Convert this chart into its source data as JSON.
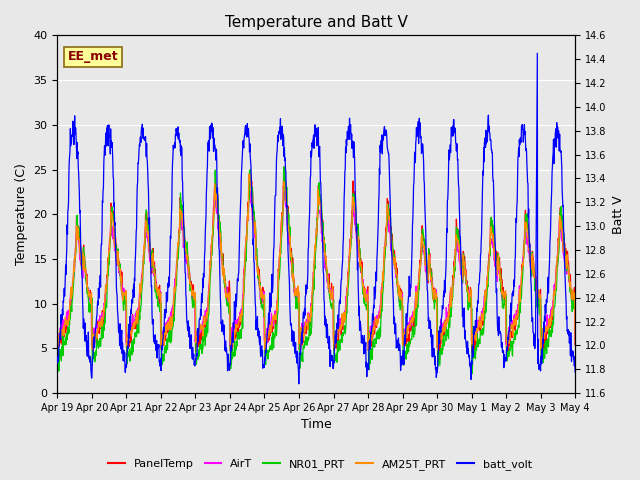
{
  "title": "Temperature and Batt V",
  "xlabel": "Time",
  "ylabel_left": "Temperature (C)",
  "ylabel_right": "Batt V",
  "annotation": "EE_met",
  "ylim_left": [
    0,
    40
  ],
  "ylim_right": [
    11.6,
    14.6
  ],
  "xlim": [
    0,
    15
  ],
  "x_tick_labels": [
    "Apr 19",
    "Apr 20",
    "Apr 21",
    "Apr 22",
    "Apr 23",
    "Apr 24",
    "Apr 25",
    "Apr 26",
    "Apr 27",
    "Apr 28",
    "Apr 29",
    "Apr 30",
    "May 1",
    "May 2",
    "May 3",
    "May 4"
  ],
  "colors": {
    "PanelTemp": "#FF0000",
    "AirT": "#FF00FF",
    "NR01_PRT": "#00CC00",
    "AM25T_PRT": "#FF8C00",
    "batt_volt": "#0000FF"
  },
  "yticks_left": [
    0,
    5,
    10,
    15,
    20,
    25,
    30,
    35,
    40
  ],
  "yticks_right": [
    11.6,
    11.8,
    12.0,
    12.2,
    12.4,
    12.6,
    12.8,
    13.0,
    13.2,
    13.4,
    13.6,
    13.8,
    14.0,
    14.2,
    14.4,
    14.6
  ],
  "bg_color": "#E8E8E8",
  "num_days": 15,
  "pts_per_day": 96
}
